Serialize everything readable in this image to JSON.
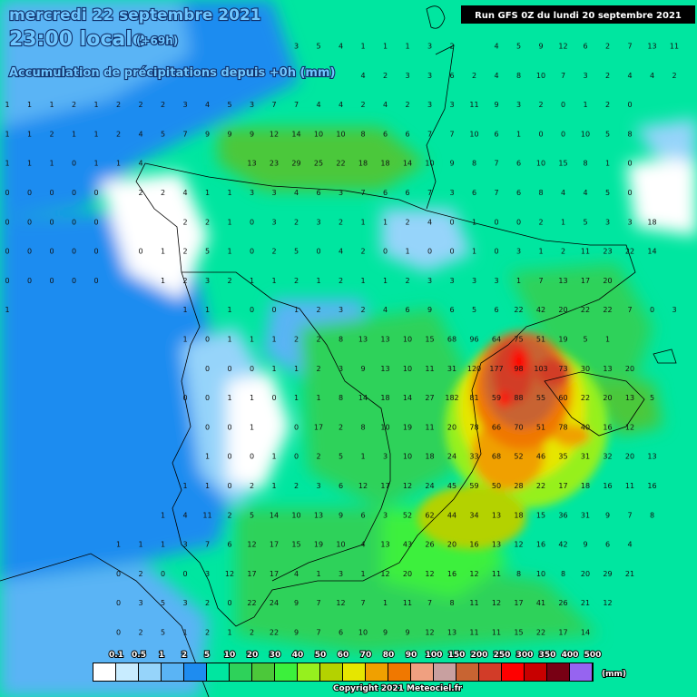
{
  "header": {
    "date": "mercredi 22 septembre 2021",
    "time": "23:00 locale",
    "offset": "(+69h)",
    "subtitle": "Accumulation de précipitations depuis +0h (mm)",
    "run": "Run GFS 0Z du lundi 20 septembre 2021"
  },
  "legend": {
    "labels": [
      "0.1",
      "0.5",
      "1",
      "2",
      "5",
      "10",
      "20",
      "30",
      "40",
      "50",
      "60",
      "70",
      "80",
      "90",
      "100",
      "150",
      "200",
      "250",
      "300",
      "350",
      "400",
      "500"
    ],
    "colors": [
      "#ffffff",
      "#c8ecff",
      "#96d4fa",
      "#5ab4f5",
      "#1e8cf0",
      "#00e6a0",
      "#2ed25a",
      "#4cc83a",
      "#3cf03c",
      "#96f01e",
      "#b4d200",
      "#e6e600",
      "#f0a000",
      "#f07800",
      "#f0a080",
      "#c8a0a0",
      "#c86432",
      "#d23c28",
      "#ff0000",
      "#c80000",
      "#780014",
      "#9664f0"
    ],
    "unit": "(mm)"
  },
  "footer": {
    "copyright": "Copyright 2021 Meteociel.fr"
  },
  "map": {
    "grid": [
      [
        null,
        null,
        null,
        null,
        null,
        null,
        null,
        null,
        null,
        null,
        null,
        null,
        null,
        3,
        5,
        4,
        1,
        1,
        1,
        3,
        2,
        null,
        4,
        5,
        9,
        12,
        6,
        2,
        7,
        13,
        11
      ],
      [
        null,
        null,
        null,
        null,
        null,
        null,
        null,
        null,
        null,
        null,
        null,
        null,
        null,
        null,
        null,
        null,
        4,
        2,
        3,
        3,
        6,
        2,
        4,
        8,
        10,
        7,
        3,
        2,
        4,
        4,
        2
      ],
      [
        1,
        1,
        1,
        2,
        1,
        2,
        2,
        2,
        3,
        4,
        5,
        3,
        7,
        7,
        4,
        4,
        2,
        4,
        2,
        3,
        3,
        11,
        9,
        3,
        2,
        0,
        1,
        2,
        0,
        null,
        null
      ],
      [
        1,
        1,
        2,
        1,
        1,
        2,
        4,
        5,
        7,
        9,
        9,
        9,
        12,
        14,
        10,
        10,
        8,
        6,
        6,
        7,
        7,
        10,
        6,
        1,
        0,
        0,
        10,
        5,
        8,
        null,
        null
      ],
      [
        1,
        1,
        1,
        0,
        1,
        1,
        4,
        null,
        null,
        null,
        null,
        13,
        23,
        29,
        25,
        22,
        18,
        18,
        14,
        10,
        9,
        8,
        7,
        6,
        10,
        15,
        8,
        1,
        0,
        null,
        null
      ],
      [
        0,
        0,
        0,
        0,
        0,
        null,
        2,
        2,
        4,
        1,
        1,
        3,
        3,
        4,
        6,
        3,
        7,
        6,
        6,
        7,
        3,
        6,
        7,
        6,
        8,
        4,
        4,
        5,
        0,
        null,
        null
      ],
      [
        0,
        0,
        0,
        0,
        0,
        null,
        null,
        null,
        2,
        2,
        1,
        0,
        3,
        2,
        3,
        2,
        1,
        1,
        2,
        4,
        0,
        1,
        0,
        0,
        2,
        1,
        5,
        3,
        3,
        18,
        null
      ],
      [
        0,
        0,
        0,
        0,
        0,
        null,
        0,
        1,
        2,
        5,
        1,
        0,
        2,
        5,
        0,
        4,
        2,
        0,
        1,
        0,
        0,
        1,
        0,
        3,
        1,
        2,
        11,
        23,
        22,
        14,
        null
      ],
      [
        0,
        0,
        0,
        0,
        0,
        null,
        null,
        1,
        2,
        3,
        2,
        1,
        1,
        2,
        1,
        2,
        1,
        1,
        2,
        3,
        3,
        3,
        3,
        1,
        7,
        13,
        17,
        20,
        null,
        null,
        null
      ],
      [
        1,
        null,
        null,
        null,
        null,
        null,
        null,
        null,
        1,
        1,
        1,
        0,
        0,
        1,
        2,
        3,
        2,
        4,
        6,
        9,
        6,
        5,
        6,
        22,
        42,
        20,
        22,
        22,
        7,
        0,
        3
      ],
      [
        null,
        null,
        null,
        null,
        null,
        null,
        null,
        null,
        1,
        0,
        1,
        1,
        1,
        2,
        2,
        8,
        13,
        13,
        10,
        15,
        68,
        96,
        64,
        75,
        51,
        19,
        5,
        1,
        null,
        null,
        null
      ],
      [
        null,
        null,
        null,
        null,
        null,
        null,
        null,
        null,
        null,
        0,
        0,
        0,
        1,
        1,
        2,
        3,
        9,
        13,
        10,
        11,
        31,
        120,
        177,
        98,
        103,
        73,
        30,
        13,
        20,
        null,
        null
      ],
      [
        null,
        null,
        null,
        null,
        null,
        null,
        null,
        null,
        0,
        0,
        1,
        1,
        0,
        1,
        1,
        8,
        14,
        18,
        14,
        27,
        182,
        81,
        59,
        88,
        55,
        60,
        22,
        20,
        13,
        5,
        null
      ],
      [
        null,
        null,
        null,
        null,
        null,
        null,
        null,
        null,
        null,
        0,
        0,
        1,
        null,
        0,
        17,
        2,
        8,
        10,
        19,
        11,
        20,
        78,
        66,
        70,
        51,
        78,
        40,
        16,
        12,
        null,
        null
      ],
      [
        null,
        null,
        null,
        null,
        null,
        null,
        null,
        null,
        null,
        1,
        0,
        0,
        1,
        0,
        2,
        5,
        1,
        3,
        10,
        18,
        24,
        33,
        68,
        52,
        46,
        35,
        31,
        32,
        20,
        13,
        null
      ],
      [
        null,
        null,
        null,
        null,
        null,
        null,
        null,
        null,
        1,
        1,
        0,
        2,
        1,
        2,
        3,
        6,
        12,
        17,
        12,
        24,
        45,
        59,
        50,
        28,
        22,
        17,
        18,
        16,
        11,
        16,
        null
      ],
      [
        null,
        null,
        null,
        null,
        null,
        null,
        null,
        1,
        4,
        11,
        2,
        5,
        14,
        10,
        13,
        9,
        6,
        3,
        52,
        62,
        44,
        34,
        13,
        18,
        15,
        36,
        31,
        9,
        7,
        8,
        null
      ],
      [
        null,
        null,
        null,
        null,
        null,
        1,
        1,
        1,
        3,
        7,
        6,
        12,
        17,
        15,
        19,
        10,
        4,
        13,
        43,
        26,
        20,
        16,
        13,
        12,
        16,
        42,
        9,
        6,
        4,
        null,
        null
      ],
      [
        null,
        null,
        null,
        null,
        null,
        0,
        2,
        0,
        0,
        3,
        12,
        17,
        17,
        4,
        1,
        3,
        1,
        12,
        20,
        12,
        16,
        12,
        11,
        8,
        10,
        8,
        20,
        29,
        21,
        null,
        null
      ],
      [
        null,
        null,
        null,
        null,
        null,
        0,
        3,
        5,
        3,
        2,
        0,
        22,
        24,
        9,
        7,
        12,
        7,
        1,
        11,
        7,
        8,
        11,
        12,
        17,
        41,
        26,
        21,
        12,
        null,
        null,
        null
      ],
      [
        null,
        null,
        null,
        null,
        null,
        0,
        2,
        5,
        1,
        2,
        1,
        2,
        22,
        9,
        7,
        6,
        10,
        9,
        9,
        12,
        13,
        11,
        11,
        15,
        22,
        17,
        14,
        null,
        null,
        null,
        null
      ]
    ]
  }
}
